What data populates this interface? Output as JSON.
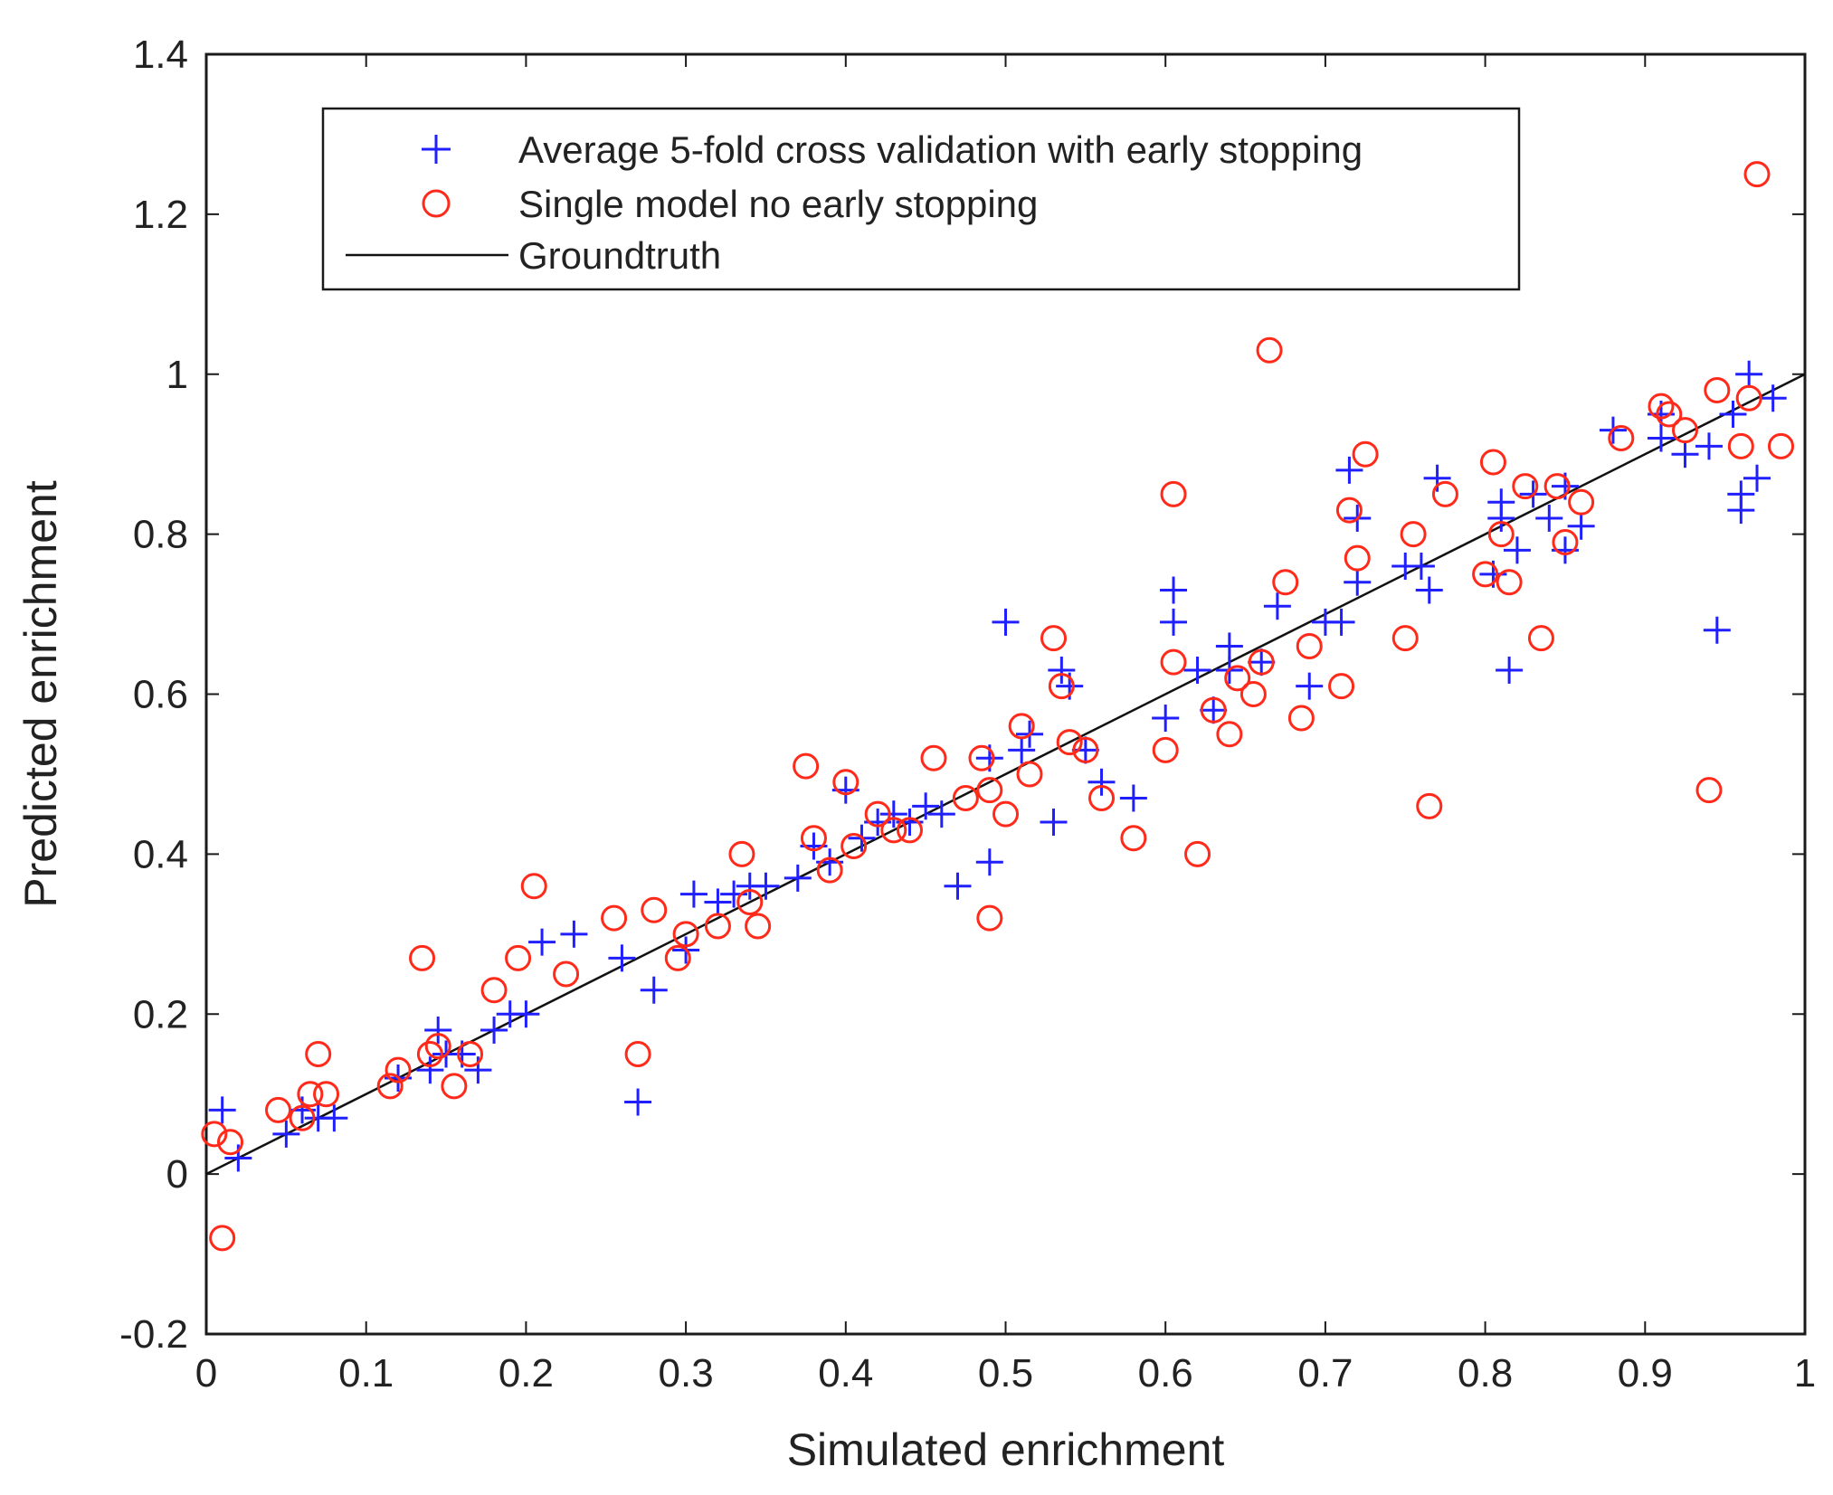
{
  "chart_data": {
    "type": "scatter",
    "title": "",
    "xlabel": "Simulated enrichment",
    "ylabel": "Predicted enrichment",
    "xlim": [
      0,
      1
    ],
    "ylim": [
      -0.2,
      1.4
    ],
    "xticks": [
      0,
      0.1,
      0.2,
      0.3,
      0.4,
      0.5,
      0.6,
      0.7,
      0.8,
      0.9,
      1
    ],
    "xtick_labels": [
      "0",
      "0.1",
      "0.2",
      "0.3",
      "0.4",
      "0.5",
      "0.6",
      "0.7",
      "0.8",
      "0.9",
      "1"
    ],
    "yticks": [
      -0.2,
      0,
      0.2,
      0.4,
      0.6,
      0.8,
      1,
      1.2,
      1.4
    ],
    "ytick_labels": [
      "-0.2",
      "0",
      "0.2",
      "0.4",
      "0.6",
      "0.8",
      "1",
      "1.2",
      "1.4"
    ],
    "grid": false,
    "legend_position": "top-left",
    "series": [
      {
        "name": "Average 5-fold cross validation with early stopping",
        "marker": "plus",
        "color": "#1f1fff",
        "points": [
          [
            0.01,
            0.08
          ],
          [
            0.02,
            0.02
          ],
          [
            0.05,
            0.05
          ],
          [
            0.06,
            0.08
          ],
          [
            0.07,
            0.07
          ],
          [
            0.08,
            0.07
          ],
          [
            0.12,
            0.12
          ],
          [
            0.14,
            0.13
          ],
          [
            0.145,
            0.18
          ],
          [
            0.15,
            0.15
          ],
          [
            0.16,
            0.15
          ],
          [
            0.17,
            0.13
          ],
          [
            0.18,
            0.18
          ],
          [
            0.19,
            0.2
          ],
          [
            0.2,
            0.2
          ],
          [
            0.21,
            0.29
          ],
          [
            0.23,
            0.3
          ],
          [
            0.26,
            0.27
          ],
          [
            0.27,
            0.09
          ],
          [
            0.28,
            0.23
          ],
          [
            0.3,
            0.28
          ],
          [
            0.305,
            0.35
          ],
          [
            0.32,
            0.34
          ],
          [
            0.33,
            0.35
          ],
          [
            0.34,
            0.36
          ],
          [
            0.35,
            0.36
          ],
          [
            0.37,
            0.37
          ],
          [
            0.38,
            0.41
          ],
          [
            0.39,
            0.39
          ],
          [
            0.4,
            0.48
          ],
          [
            0.41,
            0.42
          ],
          [
            0.42,
            0.44
          ],
          [
            0.43,
            0.45
          ],
          [
            0.44,
            0.44
          ],
          [
            0.45,
            0.46
          ],
          [
            0.46,
            0.45
          ],
          [
            0.47,
            0.36
          ],
          [
            0.49,
            0.39
          ],
          [
            0.49,
            0.52
          ],
          [
            0.5,
            0.69
          ],
          [
            0.51,
            0.53
          ],
          [
            0.515,
            0.55
          ],
          [
            0.53,
            0.44
          ],
          [
            0.535,
            0.63
          ],
          [
            0.54,
            0.61
          ],
          [
            0.55,
            0.53
          ],
          [
            0.56,
            0.49
          ],
          [
            0.58,
            0.47
          ],
          [
            0.6,
            0.57
          ],
          [
            0.605,
            0.73
          ],
          [
            0.605,
            0.69
          ],
          [
            0.62,
            0.63
          ],
          [
            0.63,
            0.58
          ],
          [
            0.64,
            0.63
          ],
          [
            0.64,
            0.66
          ],
          [
            0.66,
            0.64
          ],
          [
            0.67,
            0.71
          ],
          [
            0.69,
            0.61
          ],
          [
            0.7,
            0.69
          ],
          [
            0.71,
            0.69
          ],
          [
            0.715,
            0.88
          ],
          [
            0.72,
            0.74
          ],
          [
            0.72,
            0.82
          ],
          [
            0.75,
            0.76
          ],
          [
            0.76,
            0.76
          ],
          [
            0.765,
            0.73
          ],
          [
            0.77,
            0.87
          ],
          [
            0.805,
            0.75
          ],
          [
            0.81,
            0.84
          ],
          [
            0.81,
            0.82
          ],
          [
            0.815,
            0.63
          ],
          [
            0.82,
            0.78
          ],
          [
            0.83,
            0.85
          ],
          [
            0.84,
            0.82
          ],
          [
            0.85,
            0.86
          ],
          [
            0.85,
            0.78
          ],
          [
            0.86,
            0.81
          ],
          [
            0.88,
            0.93
          ],
          [
            0.91,
            0.95
          ],
          [
            0.91,
            0.92
          ],
          [
            0.925,
            0.9
          ],
          [
            0.94,
            0.91
          ],
          [
            0.945,
            0.68
          ],
          [
            0.955,
            0.95
          ],
          [
            0.96,
            0.85
          ],
          [
            0.96,
            0.83
          ],
          [
            0.965,
            1.0
          ],
          [
            0.97,
            0.87
          ],
          [
            0.98,
            0.97
          ]
        ]
      },
      {
        "name": "Single model no early stopping",
        "marker": "circle",
        "color": "#ff2a1a",
        "points": [
          [
            0.005,
            0.05
          ],
          [
            0.01,
            -0.08
          ],
          [
            0.015,
            0.04
          ],
          [
            0.045,
            0.08
          ],
          [
            0.06,
            0.07
          ],
          [
            0.065,
            0.1
          ],
          [
            0.07,
            0.15
          ],
          [
            0.075,
            0.1
          ],
          [
            0.115,
            0.11
          ],
          [
            0.12,
            0.13
          ],
          [
            0.135,
            0.27
          ],
          [
            0.14,
            0.15
          ],
          [
            0.145,
            0.16
          ],
          [
            0.155,
            0.11
          ],
          [
            0.165,
            0.15
          ],
          [
            0.18,
            0.23
          ],
          [
            0.195,
            0.27
          ],
          [
            0.205,
            0.36
          ],
          [
            0.225,
            0.25
          ],
          [
            0.255,
            0.32
          ],
          [
            0.27,
            0.15
          ],
          [
            0.28,
            0.33
          ],
          [
            0.295,
            0.27
          ],
          [
            0.3,
            0.3
          ],
          [
            0.32,
            0.31
          ],
          [
            0.335,
            0.4
          ],
          [
            0.34,
            0.34
          ],
          [
            0.345,
            0.31
          ],
          [
            0.375,
            0.51
          ],
          [
            0.38,
            0.42
          ],
          [
            0.39,
            0.38
          ],
          [
            0.4,
            0.49
          ],
          [
            0.405,
            0.41
          ],
          [
            0.42,
            0.45
          ],
          [
            0.43,
            0.43
          ],
          [
            0.44,
            0.43
          ],
          [
            0.455,
            0.52
          ],
          [
            0.475,
            0.47
          ],
          [
            0.485,
            0.52
          ],
          [
            0.49,
            0.32
          ],
          [
            0.49,
            0.48
          ],
          [
            0.5,
            0.45
          ],
          [
            0.51,
            0.56
          ],
          [
            0.515,
            0.5
          ],
          [
            0.53,
            0.67
          ],
          [
            0.535,
            0.61
          ],
          [
            0.54,
            0.54
          ],
          [
            0.55,
            0.53
          ],
          [
            0.56,
            0.47
          ],
          [
            0.58,
            0.42
          ],
          [
            0.6,
            0.53
          ],
          [
            0.605,
            0.64
          ],
          [
            0.605,
            0.85
          ],
          [
            0.62,
            0.4
          ],
          [
            0.63,
            0.58
          ],
          [
            0.64,
            0.55
          ],
          [
            0.645,
            0.62
          ],
          [
            0.655,
            0.6
          ],
          [
            0.66,
            0.64
          ],
          [
            0.665,
            1.03
          ],
          [
            0.675,
            0.74
          ],
          [
            0.685,
            0.57
          ],
          [
            0.69,
            0.66
          ],
          [
            0.71,
            0.61
          ],
          [
            0.715,
            0.83
          ],
          [
            0.72,
            0.77
          ],
          [
            0.725,
            0.9
          ],
          [
            0.75,
            0.67
          ],
          [
            0.755,
            0.8
          ],
          [
            0.765,
            0.46
          ],
          [
            0.775,
            0.85
          ],
          [
            0.8,
            0.75
          ],
          [
            0.805,
            0.89
          ],
          [
            0.81,
            0.8
          ],
          [
            0.815,
            0.74
          ],
          [
            0.825,
            0.86
          ],
          [
            0.835,
            0.67
          ],
          [
            0.845,
            0.86
          ],
          [
            0.85,
            0.79
          ],
          [
            0.86,
            0.84
          ],
          [
            0.885,
            0.92
          ],
          [
            0.91,
            0.96
          ],
          [
            0.915,
            0.95
          ],
          [
            0.925,
            0.93
          ],
          [
            0.94,
            0.48
          ],
          [
            0.945,
            0.98
          ],
          [
            0.96,
            0.91
          ],
          [
            0.965,
            0.97
          ],
          [
            0.97,
            1.25
          ],
          [
            0.985,
            0.91
          ]
        ]
      },
      {
        "name": "Groundtruth",
        "marker": "line",
        "color": "#111111",
        "points": [
          [
            0,
            0
          ],
          [
            1,
            1
          ]
        ]
      }
    ]
  }
}
